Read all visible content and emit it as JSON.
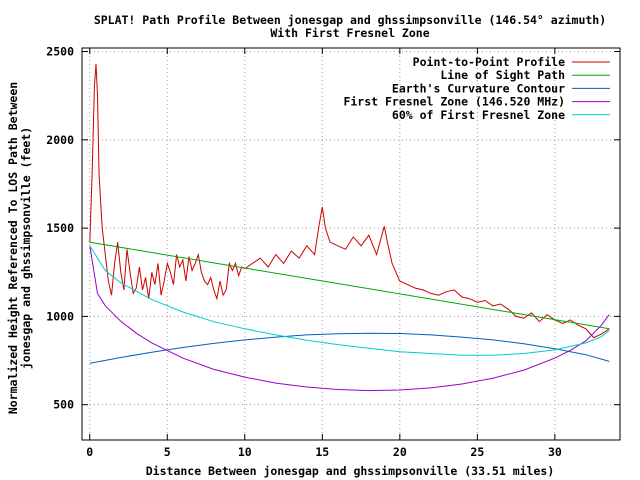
{
  "chart_data": {
    "type": "line",
    "title": "SPLAT! Path Profile Between jonesgap and ghssimpsonville (146.54° azimuth)",
    "subtitle": "With First Fresnel Zone",
    "xlabel": "Distance Between jonesgap and ghssimpsonville (33.51 miles)",
    "ylabel_line1": "Normalized Height Referenced To LOS Path Between",
    "ylabel_line2": "jonesgap and ghssimpsonville (feet)",
    "xlim": [
      -0.5,
      34.2
    ],
    "ylim": [
      300,
      2520
    ],
    "xticks": [
      0,
      5,
      10,
      15,
      20,
      25,
      30
    ],
    "yticks": [
      500,
      1000,
      1500,
      2000,
      2500
    ],
    "grid": true,
    "legend_position": "top-right",
    "series": [
      {
        "name": "Point-to-Point Profile",
        "color": "#cc0000",
        "x": [
          0,
          0.15,
          0.3,
          0.4,
          0.5,
          0.6,
          0.8,
          1.0,
          1.2,
          1.4,
          1.6,
          1.8,
          2.0,
          2.2,
          2.4,
          2.6,
          2.8,
          3.0,
          3.2,
          3.4,
          3.6,
          3.8,
          4.0,
          4.2,
          4.4,
          4.6,
          4.8,
          5.0,
          5.2,
          5.4,
          5.6,
          5.8,
          6.0,
          6.2,
          6.4,
          6.6,
          6.8,
          7.0,
          7.2,
          7.4,
          7.6,
          7.8,
          8.0,
          8.2,
          8.4,
          8.6,
          8.8,
          9.0,
          9.2,
          9.4,
          9.6,
          9.8,
          10.0,
          10.5,
          11.0,
          11.5,
          12.0,
          12.5,
          13.0,
          13.5,
          14.0,
          14.5,
          14.8,
          15.0,
          15.2,
          15.5,
          16.0,
          16.5,
          17.0,
          17.5,
          18.0,
          18.5,
          19.0,
          19.2,
          19.5,
          20.0,
          20.5,
          21.0,
          21.5,
          22.0,
          22.5,
          23.0,
          23.5,
          24.0,
          24.5,
          25.0,
          25.5,
          26.0,
          26.5,
          27.0,
          27.5,
          28.0,
          28.5,
          29.0,
          29.5,
          30.0,
          30.5,
          31.0,
          31.5,
          32.0,
          32.5,
          33.0,
          33.51
        ],
        "y": [
          1420,
          1800,
          2300,
          2430,
          2250,
          1800,
          1500,
          1350,
          1200,
          1120,
          1300,
          1420,
          1250,
          1150,
          1380,
          1250,
          1130,
          1160,
          1280,
          1150,
          1220,
          1100,
          1250,
          1180,
          1300,
          1120,
          1200,
          1300,
          1250,
          1180,
          1350,
          1280,
          1320,
          1200,
          1340,
          1260,
          1300,
          1350,
          1250,
          1200,
          1180,
          1220,
          1150,
          1100,
          1200,
          1120,
          1150,
          1300,
          1260,
          1300,
          1230,
          1280,
          1270,
          1300,
          1330,
          1280,
          1350,
          1300,
          1370,
          1330,
          1400,
          1350,
          1520,
          1620,
          1500,
          1420,
          1400,
          1380,
          1450,
          1400,
          1460,
          1350,
          1510,
          1420,
          1300,
          1200,
          1180,
          1160,
          1150,
          1130,
          1120,
          1140,
          1150,
          1110,
          1100,
          1080,
          1090,
          1060,
          1070,
          1040,
          1000,
          990,
          1020,
          970,
          1010,
          980,
          960,
          980,
          950,
          930,
          880,
          900,
          930
        ]
      },
      {
        "name": "Line of Sight Path",
        "color": "#00aa00",
        "x": [
          0,
          33.51
        ],
        "y": [
          1420,
          930
        ]
      },
      {
        "name": "Earth's Curvature Contour",
        "color": "#0060c0",
        "x": [
          0,
          2,
          4,
          6,
          8,
          10,
          12,
          14,
          16,
          18,
          20,
          22,
          24,
          26,
          28,
          30,
          32,
          33.51
        ],
        "y": [
          735,
          767,
          797,
          824,
          847,
          867,
          883,
          895,
          902,
          905,
          903,
          895,
          883,
          867,
          845,
          817,
          783,
          745
        ]
      },
      {
        "name": "First Fresnel Zone (146.520 MHz)",
        "color": "#9900cc",
        "x": [
          0,
          0.5,
          1,
          2,
          3,
          4,
          6,
          8,
          10,
          12,
          14,
          16,
          18,
          20,
          22,
          24,
          26,
          28,
          30,
          31,
          32,
          33,
          33.51
        ],
        "y": [
          1400,
          1130,
          1060,
          972,
          905,
          850,
          764,
          700,
          656,
          622,
          600,
          586,
          580,
          583,
          595,
          617,
          650,
          696,
          764,
          808,
          862,
          950,
          1010
        ]
      },
      {
        "name": "60% of First Fresnel Zone",
        "color": "#00cccc",
        "x": [
          0,
          1,
          2,
          4,
          6,
          8,
          10,
          12,
          14,
          16,
          18,
          20,
          22,
          24,
          26,
          28,
          30,
          32,
          33,
          33.51
        ],
        "y": [
          1400,
          1260,
          1190,
          1095,
          1025,
          970,
          930,
          895,
          865,
          840,
          820,
          800,
          790,
          780,
          780,
          790,
          810,
          850,
          885,
          920
        ]
      }
    ]
  }
}
